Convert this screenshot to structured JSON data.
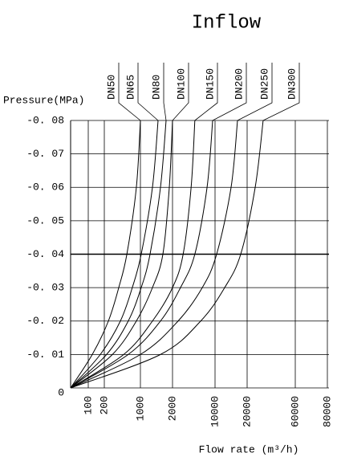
{
  "chart_data": {
    "type": "line",
    "title": "Inflow",
    "y_label": "Pressure(MPa)",
    "x_label": "Flow rate (m³/h)",
    "xlim": [
      0,
      80000
    ],
    "xticks": [
      100,
      200,
      1000,
      2000,
      10000,
      20000,
      60000,
      80000
    ],
    "ylim": [
      0,
      -0.08
    ],
    "yticks": [
      {
        "value": -0.08,
        "label": "-0. 08"
      },
      {
        "value": -0.07,
        "label": "-0. 07"
      },
      {
        "value": -0.06,
        "label": "-0. 06"
      },
      {
        "value": -0.05,
        "label": "-0. 05"
      },
      {
        "value": -0.04,
        "label": "-0. 04"
      },
      {
        "value": -0.03,
        "label": "-0. 03"
      },
      {
        "value": -0.02,
        "label": "-0. 02"
      },
      {
        "value": -0.01,
        "label": "-0. 01"
      },
      0
    ],
    "grid": true,
    "series": [
      {
        "name": "DN50",
        "color": "#000000",
        "x": [
          0,
          125,
          290,
          520,
          700,
          910,
          1000
        ],
        "values": [
          0,
          -0.01,
          -0.02,
          -0.03,
          -0.04,
          -0.06,
          -0.08
        ]
      },
      {
        "name": "DN65",
        "color": "#000000",
        "x": [
          0,
          175,
          556,
          820,
          1025,
          1375,
          1550
        ],
        "values": [
          0,
          -0.01,
          -0.02,
          -0.03,
          -0.04,
          -0.06,
          -0.08
        ]
      },
      {
        "name": "DN80",
        "color": "#000000",
        "x": [
          0,
          250,
          730,
          1025,
          1300,
          1625,
          1800
        ],
        "values": [
          0,
          -0.01,
          -0.02,
          -0.03,
          -0.04,
          -0.06,
          -0.08
        ]
      },
      {
        "name": "DN100",
        "color": "#000000",
        "x": [
          0,
          380,
          910,
          1375,
          1700,
          1900,
          2000
        ],
        "values": [
          0,
          -0.01,
          -0.02,
          -0.03,
          -0.04,
          -0.06,
          -0.08
        ]
      },
      {
        "name": "DN150",
        "color": "#000000",
        "x": [
          0,
          630,
          1375,
          2000,
          4000,
          5500,
          6200
        ],
        "values": [
          0,
          -0.01,
          -0.02,
          -0.03,
          -0.04,
          -0.06,
          -0.08
        ]
      },
      {
        "name": "DN200",
        "color": "#000000",
        "x": [
          0,
          730,
          1625,
          3500,
          6200,
          8500,
          9550
        ],
        "values": [
          0,
          -0.01,
          -0.02,
          -0.03,
          -0.04,
          -0.06,
          -0.08
        ]
      },
      {
        "name": "DN250",
        "color": "#000000",
        "x": [
          0,
          1000,
          3050,
          7600,
          10500,
          15000,
          17000
        ],
        "values": [
          0,
          -0.01,
          -0.02,
          -0.03,
          -0.04,
          -0.06,
          -0.08
        ]
      },
      {
        "name": "DN300",
        "color": "#000000",
        "x": [
          0,
          1625,
          7300,
          13000,
          18000,
          26700,
          33300
        ],
        "values": [
          0,
          -0.01,
          -0.02,
          -0.03,
          -0.04,
          -0.06,
          -0.08
        ]
      }
    ]
  }
}
